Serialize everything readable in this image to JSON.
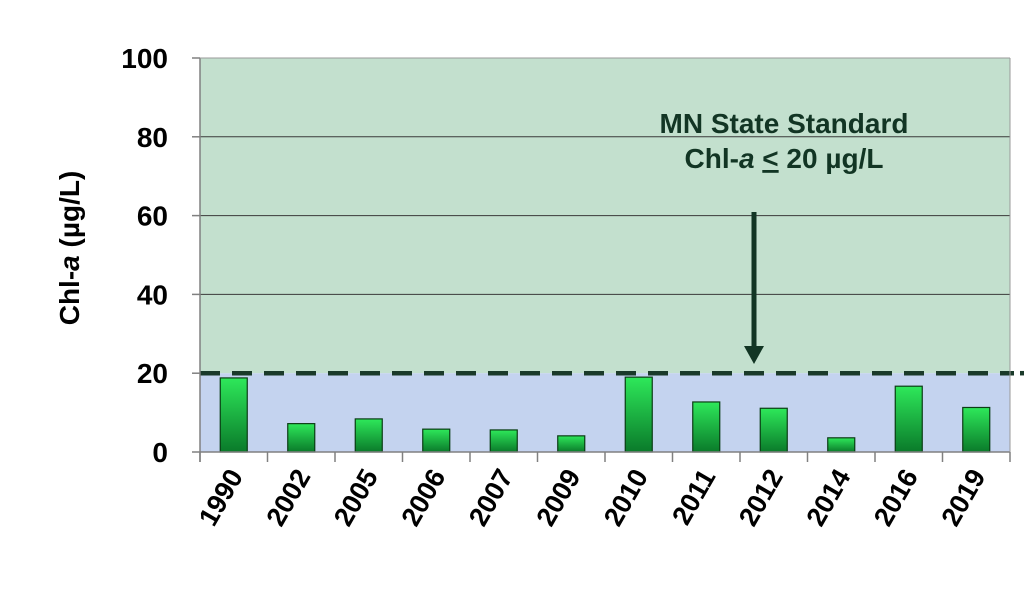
{
  "chart_data": {
    "type": "bar",
    "categories": [
      "1990",
      "2002",
      "2005",
      "2006",
      "2007",
      "2009",
      "2010",
      "2011",
      "2012",
      "2014",
      "2016",
      "2019"
    ],
    "values": [
      18.8,
      7.2,
      8.4,
      5.8,
      5.6,
      4.1,
      19.0,
      12.7,
      11.1,
      3.6,
      16.7,
      11.3
    ],
    "title": "",
    "xlabel": "",
    "ylabel_prefix": "Chl-",
    "ylabel_italic": "a",
    "ylabel_suffix": " (µg/L)",
    "ylim": [
      0,
      100
    ],
    "yticks": [
      "0",
      "20",
      "40",
      "60",
      "80",
      "100"
    ],
    "grid": true,
    "standard": {
      "value": 20,
      "line1": "MN State Standard",
      "line2_prefix": "Chl-",
      "line2_italic": "a",
      "line2_mid": " ",
      "line2_symbol": "<",
      "line2_suffix": " 20 µg/L"
    },
    "colors": {
      "above_standard_region": "#c3e0ce",
      "below_standard_region": "#c4d3ef",
      "bar_top": "#2ee85a",
      "bar_bottom": "#0a7a2a",
      "bar_stroke": "#0b3d14",
      "standard_line": "#1a3a2a",
      "annotation": "#123524"
    }
  }
}
